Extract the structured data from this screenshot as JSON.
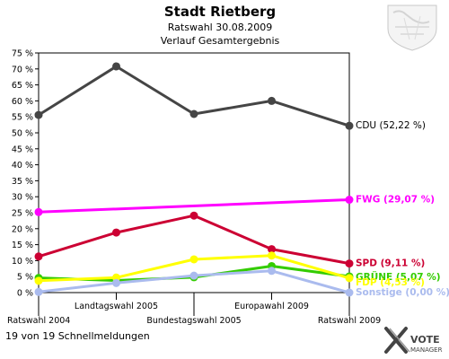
{
  "chart_data": {
    "type": "line",
    "title": "Stadt Rietberg",
    "subtitle": "Ratswahl 30.08.2009",
    "subtitle2": "Verlauf Gesamtergebnis",
    "x": [
      "Ratswahl 2004",
      "Landtagswahl 2005",
      "Bundestagswahl 2005",
      "Europawahl 2009",
      "Ratswahl 2009"
    ],
    "ylim": [
      0,
      75
    ],
    "yticks": [
      0,
      5,
      10,
      15,
      20,
      25,
      30,
      35,
      40,
      45,
      50,
      55,
      60,
      65,
      70,
      75
    ],
    "ytick_labels": [
      "0 %",
      "5 %",
      "10 %",
      "15 %",
      "20 %",
      "25 %",
      "30 %",
      "35 %",
      "40 %",
      "45 %",
      "50 %",
      "55 %",
      "60 %",
      "65 %",
      "70 %",
      "75 %"
    ],
    "series": [
      {
        "name": "CDU",
        "color": "#454545",
        "label": "CDU (52,22 %)",
        "values": [
          55.6,
          70.8,
          55.9,
          60.0,
          52.2
        ]
      },
      {
        "name": "FWG",
        "color": "#ff00ff",
        "label": "FWG (29,07 %)",
        "values": [
          25.2,
          null,
          null,
          null,
          29.07
        ]
      },
      {
        "name": "SPD",
        "color": "#cc0033",
        "label": "SPD (9,11 %)",
        "values": [
          11.3,
          18.8,
          24.1,
          13.6,
          9.11
        ]
      },
      {
        "name": "GRÜNE",
        "color": "#33cc00",
        "label": "GRÜNE (5,07 %)",
        "values": [
          4.6,
          3.8,
          4.8,
          8.3,
          5.07
        ]
      },
      {
        "name": "FDP",
        "color": "#ffff00",
        "label": "FDP (4,53 %)",
        "values": [
          3.7,
          4.7,
          10.4,
          11.6,
          4.53
        ]
      },
      {
        "name": "Sonstige",
        "color": "#aabbee",
        "label": "Sonstige (0,00 %)",
        "values": [
          0.2,
          3.0,
          5.3,
          6.8,
          0.0
        ]
      }
    ]
  },
  "footer": {
    "note": "19 von 19 Schnellmeldungen",
    "brand_line1": "VOTE",
    "brand_line2": "MANAGER"
  }
}
